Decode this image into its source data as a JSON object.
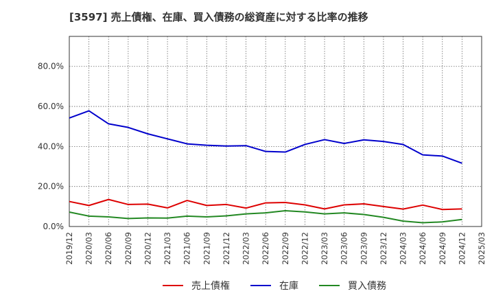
{
  "chart_data": {
    "type": "line",
    "title": "[3597]  売上債権、在庫、買入債務の総資産に対する比率の推移",
    "xlabel": "",
    "ylabel": "",
    "ylim": [
      0,
      95
    ],
    "yticks": [
      0,
      20,
      40,
      60,
      80
    ],
    "ytick_labels": [
      "0.0%",
      "20.0%",
      "40.0%",
      "60.0%",
      "80.0%"
    ],
    "x": [
      "2019/12",
      "2020/03",
      "2020/06",
      "2020/09",
      "2020/12",
      "2021/03",
      "2021/06",
      "2021/09",
      "2021/12",
      "2022/03",
      "2022/06",
      "2022/09",
      "2022/12",
      "2023/03",
      "2023/06",
      "2023/09",
      "2023/12",
      "2024/03",
      "2024/06",
      "2024/09",
      "2024/12",
      "2025/03"
    ],
    "grid": true,
    "legend_position": "bottom",
    "series": [
      {
        "name": "売上債権",
        "color": "#dd0000",
        "values": [
          12.5,
          10.5,
          13.5,
          11.0,
          11.2,
          9.3,
          13.0,
          10.5,
          11.0,
          9.2,
          11.8,
          12.0,
          10.8,
          8.8,
          10.8,
          11.3,
          10.0,
          8.7,
          10.7,
          8.5,
          8.8,
          null
        ]
      },
      {
        "name": "在庫",
        "color": "#0000cc",
        "values": [
          54.2,
          57.8,
          51.3,
          49.5,
          46.3,
          43.8,
          41.3,
          40.6,
          40.2,
          40.4,
          37.5,
          37.2,
          41.0,
          43.4,
          41.5,
          43.3,
          42.5,
          41.0,
          35.8,
          35.2,
          31.6,
          null
        ]
      },
      {
        "name": "買入債務",
        "color": "#228822",
        "values": [
          7.2,
          5.2,
          4.8,
          4.0,
          4.3,
          4.2,
          5.2,
          4.8,
          5.3,
          6.3,
          6.8,
          7.9,
          7.3,
          6.3,
          6.8,
          6.0,
          4.6,
          2.7,
          1.9,
          2.3,
          3.5,
          null
        ]
      }
    ]
  }
}
